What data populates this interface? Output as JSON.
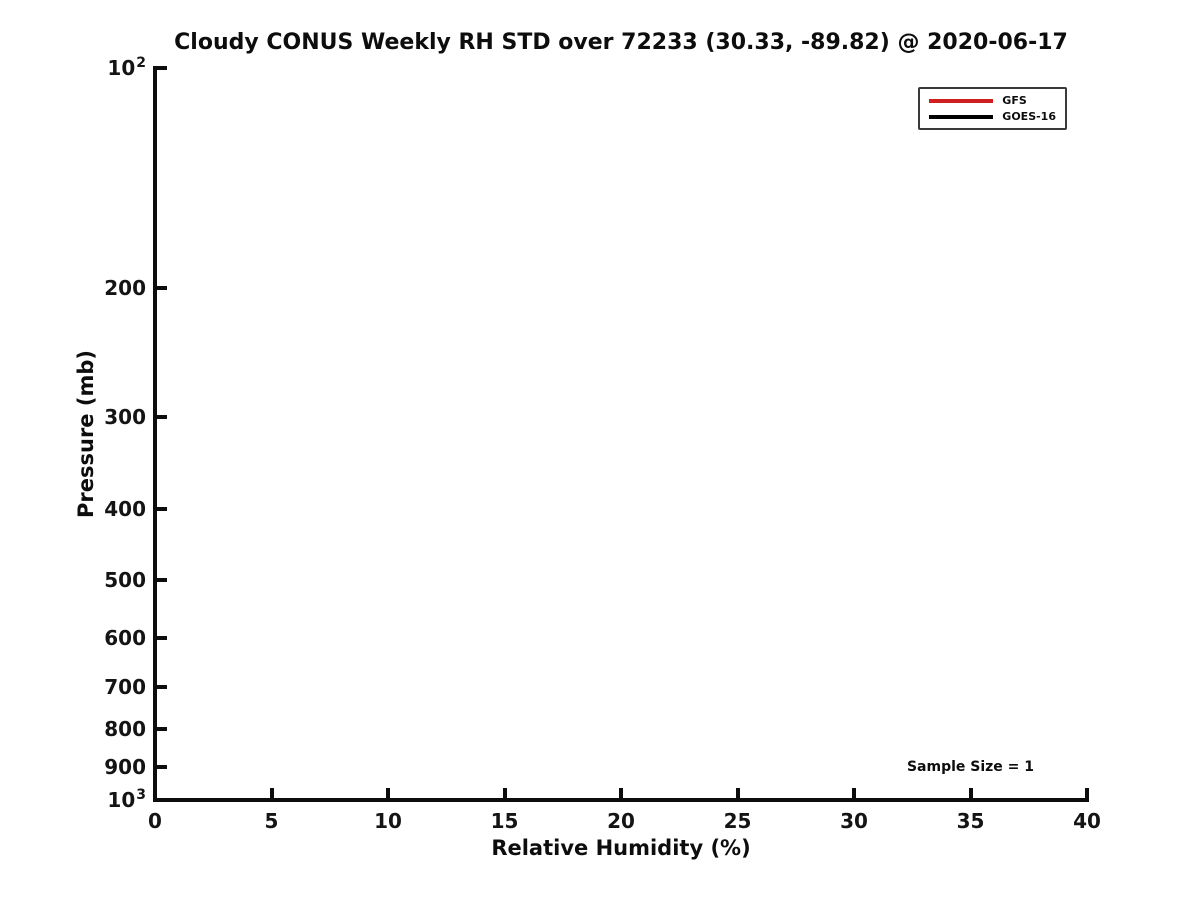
{
  "chart_data": {
    "type": "line",
    "title": "Cloudy CONUS Weekly RH STD over 72233 (30.33, -89.82) @ 2020-06-17",
    "xlabel": "Relative Humidity (%)",
    "ylabel": "Pressure (mb)",
    "xlim": [
      0,
      40
    ],
    "x_ticks": [
      0,
      5,
      10,
      15,
      20,
      25,
      30,
      35,
      40
    ],
    "yscale": "log",
    "ylim": [
      100,
      1000
    ],
    "y_axis_direction": "increasing-downward",
    "y_ticks": [
      100,
      200,
      300,
      400,
      500,
      600,
      700,
      800,
      900,
      1000
    ],
    "y_tick_labels": [
      "10^2",
      "200",
      "300",
      "400",
      "500",
      "600",
      "700",
      "800",
      "900",
      "10^3"
    ],
    "grid": false,
    "legend": {
      "position": "upper right",
      "entries": [
        {
          "label": "GFS",
          "color": "#d01f1f"
        },
        {
          "label": "GOES-16",
          "color": "#000000"
        }
      ]
    },
    "series": [
      {
        "name": "GFS",
        "color": "#d01f1f",
        "points": []
      },
      {
        "name": "GOES-16",
        "color": "#000000",
        "points": []
      }
    ],
    "annotations": [
      {
        "text": "Sample Size = 1",
        "x": 35,
        "y": 900
      }
    ],
    "colors": {
      "text": "#0d0d0d",
      "spine": "#0d0d0d",
      "background": "#ffffff"
    }
  }
}
